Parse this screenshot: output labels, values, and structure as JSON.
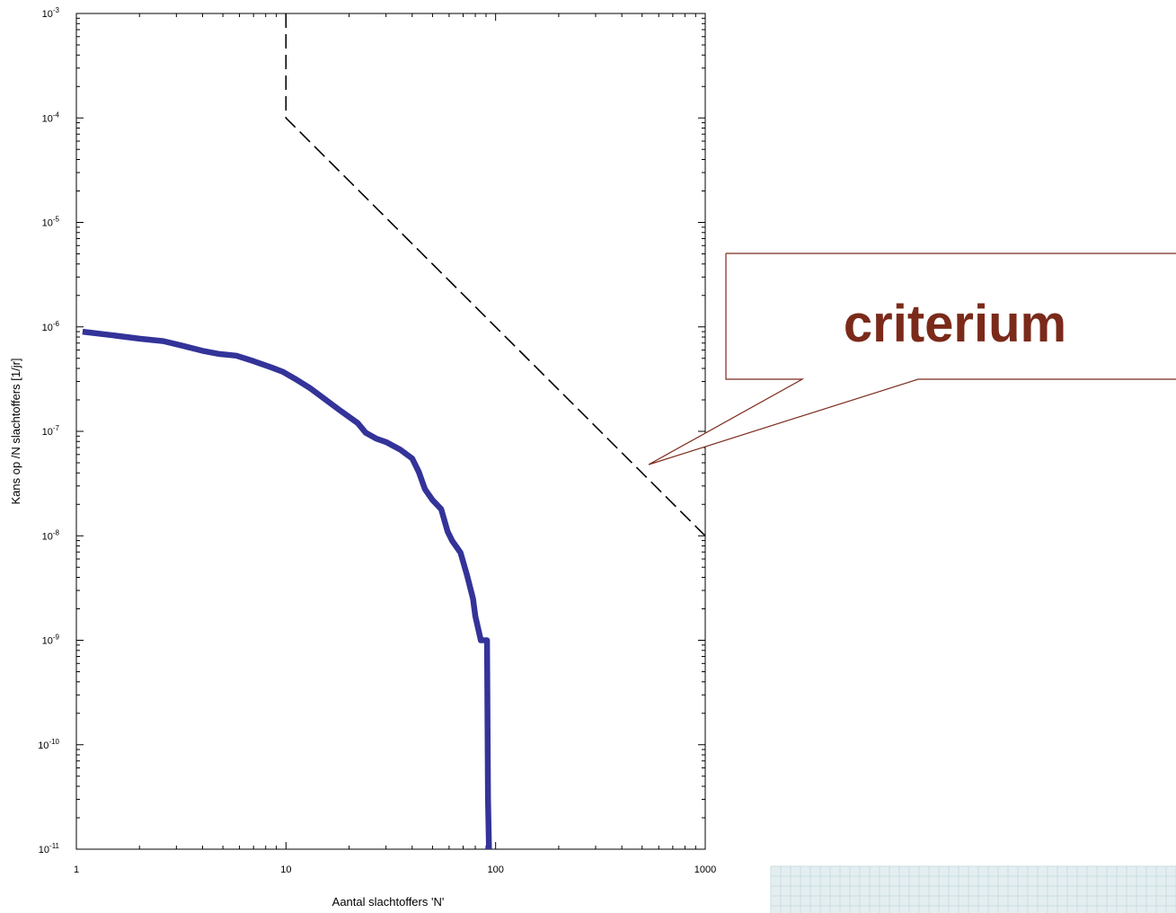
{
  "chart_data": {
    "type": "line",
    "title": "",
    "xlabel": "Aantal slachtoffers 'N'",
    "ylabel": "Kans op /N slachtoffers [1/jr]",
    "x_scale": "log",
    "y_scale": "log",
    "xlim": [
      1,
      1000
    ],
    "ylim": [
      1e-11,
      0.001
    ],
    "x_ticks": [
      {
        "value": 1,
        "label": "1"
      },
      {
        "value": 10,
        "label": "10"
      },
      {
        "value": 100,
        "label": "100"
      },
      {
        "value": 1000,
        "label": "1000"
      }
    ],
    "y_ticks": [
      {
        "value": 0.001,
        "base": "10",
        "exp": "-3"
      },
      {
        "value": 0.0001,
        "base": "10",
        "exp": "-4"
      },
      {
        "value": 1e-05,
        "base": "10",
        "exp": "-5"
      },
      {
        "value": 1e-06,
        "base": "10",
        "exp": "-6"
      },
      {
        "value": 1e-07,
        "base": "10",
        "exp": "-7"
      },
      {
        "value": 1e-08,
        "base": "10",
        "exp": "-8"
      },
      {
        "value": 1e-09,
        "base": "10",
        "exp": "-9"
      },
      {
        "value": 1e-10,
        "base": "10",
        "exp": "-10"
      },
      {
        "value": 1e-11,
        "base": "10",
        "exp": "-11"
      }
    ],
    "grid": false,
    "series": [
      {
        "style": "solid",
        "color": "#333399",
        "points": [
          [
            1.07,
            9e-07
          ],
          [
            1.5,
            8.3e-07
          ],
          [
            2.0,
            7.7e-07
          ],
          [
            2.6,
            7.3e-07
          ],
          [
            3.2,
            6.6e-07
          ],
          [
            4.0,
            5.9e-07
          ],
          [
            4.8,
            5.5e-07
          ],
          [
            5.8,
            5.3e-07
          ],
          [
            7.0,
            4.7e-07
          ],
          [
            8.5,
            4.1e-07
          ],
          [
            9.7,
            3.7e-07
          ],
          [
            11,
            3.2e-07
          ],
          [
            13,
            2.6e-07
          ],
          [
            15,
            2.1e-07
          ],
          [
            18,
            1.6e-07
          ],
          [
            22,
            1.2e-07
          ],
          [
            24,
            9.7e-08
          ],
          [
            27,
            8.5e-08
          ],
          [
            30,
            7.9e-08
          ],
          [
            35,
            6.7e-08
          ],
          [
            40,
            5.5e-08
          ],
          [
            43,
            4.1e-08
          ],
          [
            46,
            2.8e-08
          ],
          [
            50,
            2.2e-08
          ],
          [
            55,
            1.8e-08
          ],
          [
            59,
            1.1e-08
          ],
          [
            62,
            9e-09
          ],
          [
            68,
            6.9e-09
          ],
          [
            73,
            4.2e-09
          ],
          [
            78,
            2.5e-09
          ],
          [
            80,
            1.7e-09
          ],
          [
            85,
            1e-09
          ],
          [
            91,
            1e-09
          ],
          [
            92,
            3e-11
          ],
          [
            93,
            1e-11
          ]
        ]
      },
      {
        "style": "dashed",
        "color": "#000000",
        "points": [
          [
            10,
            0.001
          ],
          [
            10,
            0.0001
          ],
          [
            1000,
            1e-08
          ]
        ]
      }
    ],
    "annotations": [
      {
        "text": "criterium",
        "points_to": [
          500,
          4.5e-08
        ]
      }
    ]
  }
}
